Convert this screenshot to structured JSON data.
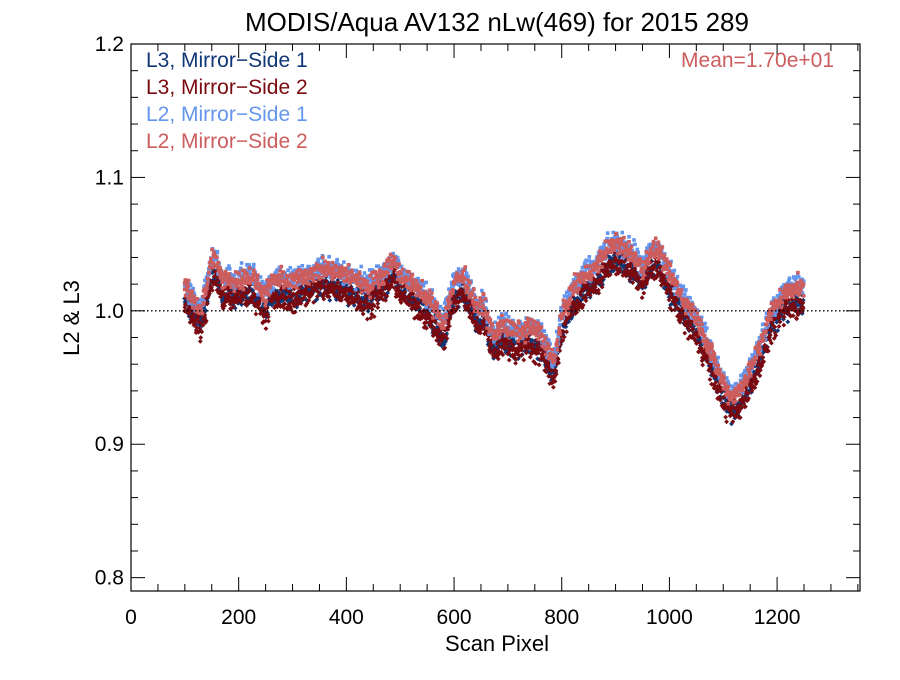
{
  "chart_data": {
    "type": "scatter",
    "title": "MODIS/Aqua AV132 nLw(469) for 2015 289",
    "xlabel": "Scan Pixel",
    "ylabel": "L2 & L3",
    "xlim": [
      0,
      1354
    ],
    "ylim": [
      0.79,
      1.2
    ],
    "x_major_ticks": [
      0,
      200,
      400,
      600,
      800,
      1000,
      1200
    ],
    "x_tick_labels": [
      "0",
      "200",
      "400",
      "600",
      "800",
      "1000",
      "1200"
    ],
    "x_minor_step": 50,
    "y_major_ticks": [
      0.8,
      0.9,
      1.0,
      1.1,
      1.2
    ],
    "y_tick_labels": [
      "0.8",
      "0.9",
      "1.0",
      "1.1",
      "1.2"
    ],
    "y_minor_step": 0.02,
    "reference_line": 1.0,
    "reference_line_style": "dotted",
    "grid": false,
    "legend_position": "top-left",
    "annotation": "Mean=1.70e+01",
    "annotation_color": "#cd5c5c",
    "x_range_of_points": [
      100,
      1250
    ],
    "profile_points": [
      [
        100,
        1.012
      ],
      [
        120,
        1.0
      ],
      [
        130,
        0.995
      ],
      [
        140,
        1.01
      ],
      [
        150,
        1.033
      ],
      [
        160,
        1.03
      ],
      [
        170,
        1.015
      ],
      [
        180,
        1.02
      ],
      [
        190,
        1.015
      ],
      [
        200,
        1.018
      ],
      [
        220,
        1.02
      ],
      [
        240,
        1.012
      ],
      [
        250,
        1.005
      ],
      [
        260,
        1.015
      ],
      [
        280,
        1.018
      ],
      [
        300,
        1.016
      ],
      [
        330,
        1.022
      ],
      [
        360,
        1.025
      ],
      [
        390,
        1.022
      ],
      [
        420,
        1.018
      ],
      [
        440,
        1.012
      ],
      [
        460,
        1.02
      ],
      [
        470,
        1.022
      ],
      [
        480,
        1.03
      ],
      [
        490,
        1.032
      ],
      [
        500,
        1.02
      ],
      [
        510,
        1.018
      ],
      [
        530,
        1.012
      ],
      [
        550,
        1.003
      ],
      [
        570,
        0.993
      ],
      [
        580,
        0.985
      ],
      [
        590,
        1.0
      ],
      [
        600,
        1.015
      ],
      [
        610,
        1.02
      ],
      [
        620,
        1.018
      ],
      [
        635,
        1.005
      ],
      [
        645,
        0.995
      ],
      [
        655,
        1.0
      ],
      [
        665,
        0.985
      ],
      [
        675,
        0.975
      ],
      [
        690,
        0.985
      ],
      [
        700,
        0.98
      ],
      [
        720,
        0.978
      ],
      [
        740,
        0.982
      ],
      [
        760,
        0.978
      ],
      [
        775,
        0.965
      ],
      [
        785,
        0.955
      ],
      [
        800,
        0.99
      ],
      [
        820,
        1.01
      ],
      [
        840,
        1.02
      ],
      [
        860,
        1.025
      ],
      [
        880,
        1.038
      ],
      [
        900,
        1.045
      ],
      [
        920,
        1.04
      ],
      [
        935,
        1.035
      ],
      [
        950,
        1.025
      ],
      [
        965,
        1.038
      ],
      [
        980,
        1.04
      ],
      [
        995,
        1.025
      ],
      [
        1010,
        1.015
      ],
      [
        1030,
        1.0
      ],
      [
        1050,
        0.99
      ],
      [
        1060,
        0.98
      ],
      [
        1070,
        0.97
      ],
      [
        1085,
        0.955
      ],
      [
        1100,
        0.94
      ],
      [
        1115,
        0.93
      ],
      [
        1130,
        0.935
      ],
      [
        1150,
        0.95
      ],
      [
        1170,
        0.97
      ],
      [
        1190,
        0.995
      ],
      [
        1210,
        1.005
      ],
      [
        1230,
        1.012
      ],
      [
        1250,
        1.012
      ]
    ],
    "series": [
      {
        "name": "L3, Mirror−Side 1",
        "color": "#0f3777",
        "marker": "diamond",
        "offset": -0.006,
        "spread": 0.012
      },
      {
        "name": "L3, Mirror−Side 2",
        "color": "#7a0a10",
        "marker": "diamond",
        "offset": -0.008,
        "spread": 0.014
      },
      {
        "name": "L2, Mirror−Side 1",
        "color": "#6495ed",
        "marker": "square",
        "offset": 0.008,
        "spread": 0.012
      },
      {
        "name": "L2, Mirror−Side 2",
        "color": "#cd5c5c",
        "marker": "square",
        "offset": 0.006,
        "spread": 0.011
      }
    ]
  }
}
